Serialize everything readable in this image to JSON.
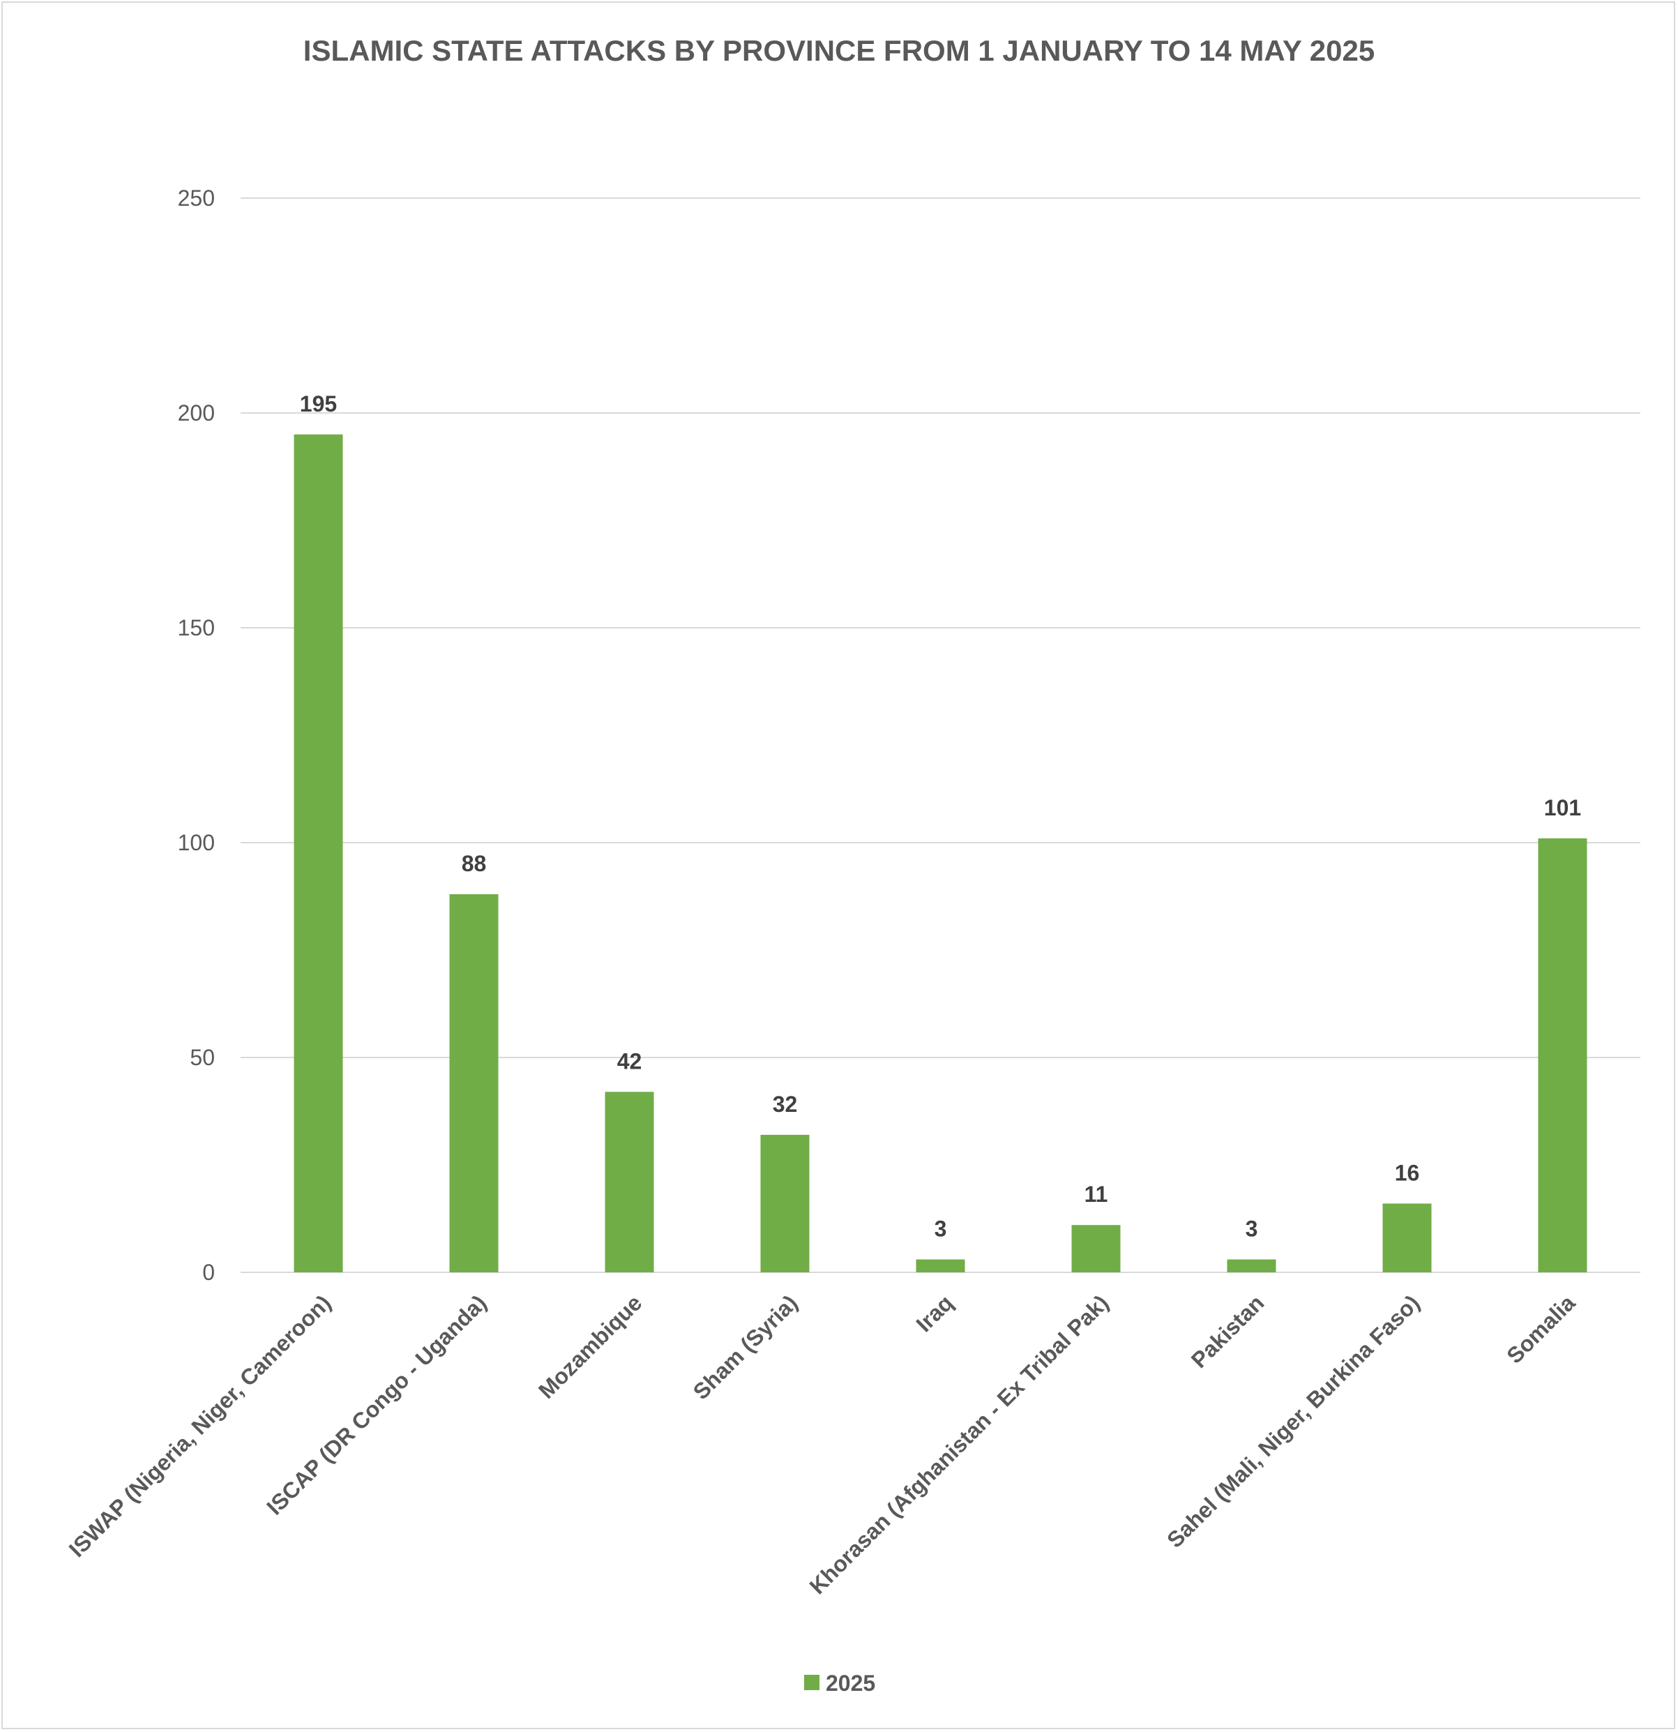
{
  "chart_data": {
    "type": "bar",
    "title": "ISLAMIC STATE ATTACKS BY PROVINCE FROM 1 JANUARY TO 14 MAY 2025",
    "xlabel": "",
    "ylabel": "",
    "ylim": [
      0,
      250
    ],
    "yticks": [
      0,
      50,
      100,
      150,
      200,
      250
    ],
    "grid": true,
    "legend_position": "bottom",
    "categories": [
      "ISWAP (Nigeria, Niger, Cameroon)",
      "ISCAP (DR Congo - Uganda)",
      "Mozambique",
      "Sham (Syria)",
      "Iraq",
      "Khorasan (Afghanistan - Ex Tribal Pak)",
      "Pakistan",
      "Sahel (Mali, Niger, Burkina Faso)",
      "Somalia"
    ],
    "series": [
      {
        "name": "2025",
        "color": "#70ad47",
        "values": [
          195,
          88,
          42,
          32,
          3,
          11,
          3,
          16,
          101
        ]
      }
    ]
  }
}
